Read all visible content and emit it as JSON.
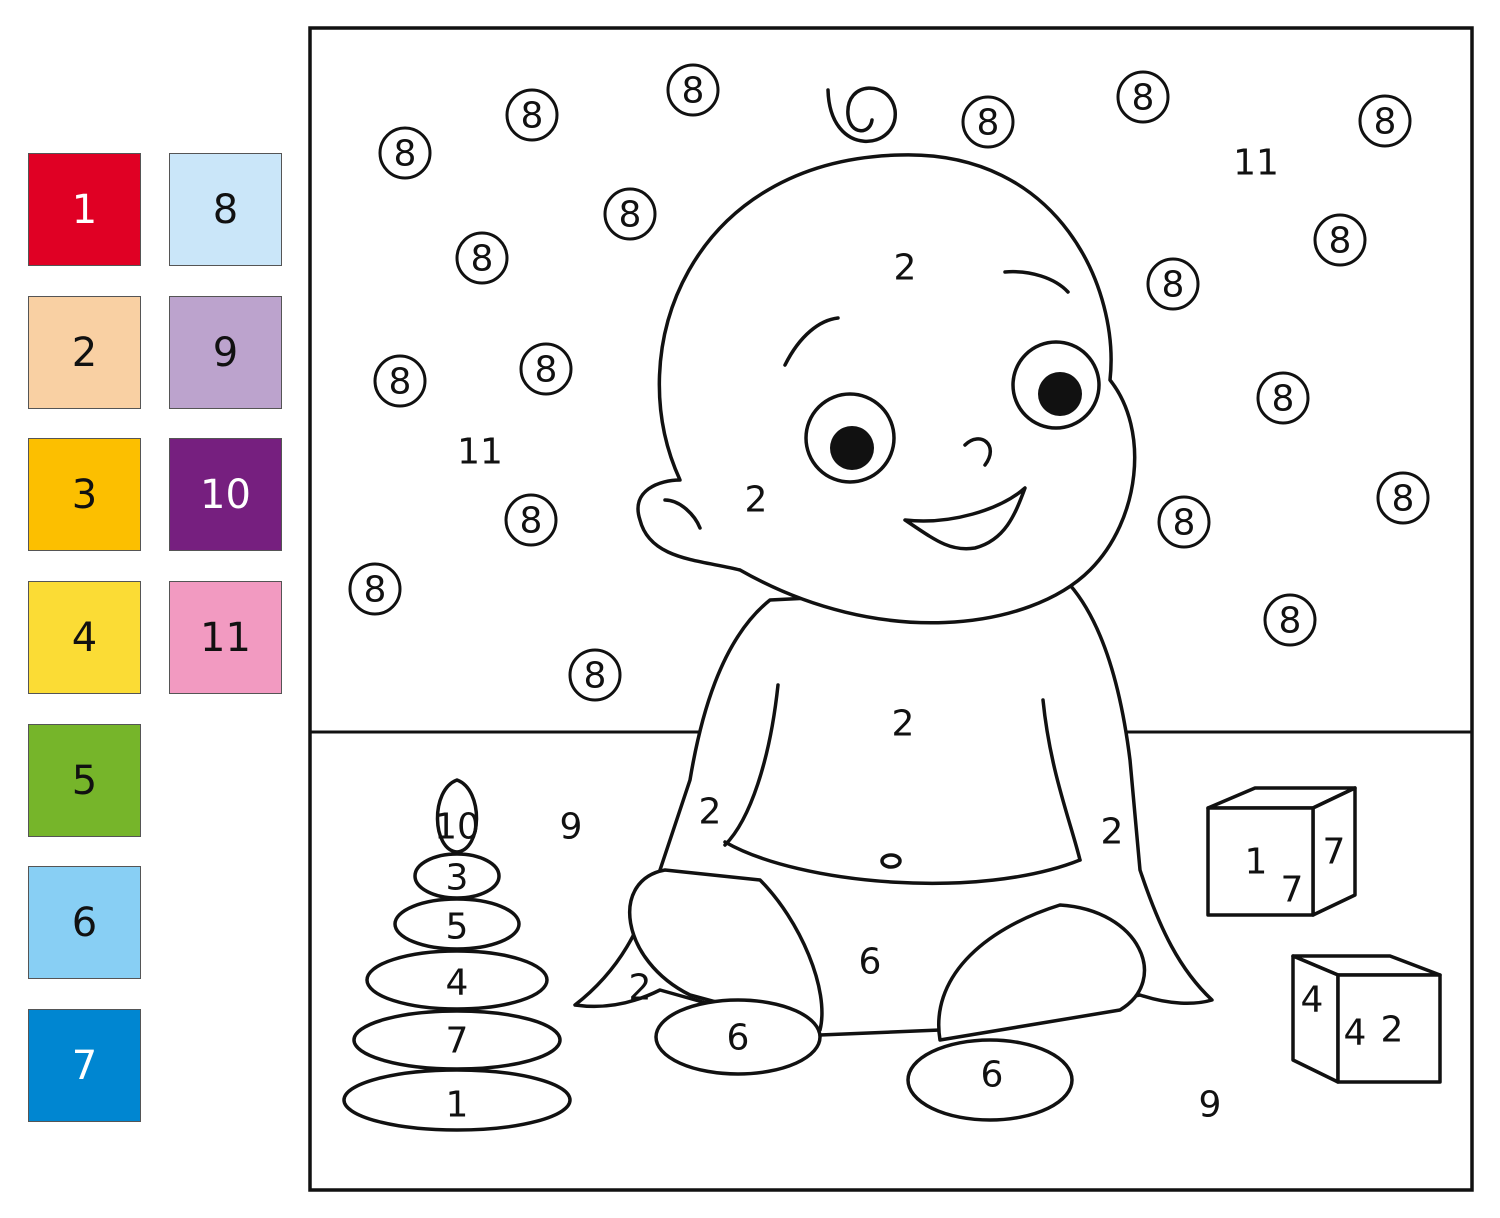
{
  "palette": [
    {
      "number": "1",
      "color": "#e00024",
      "text_color": "#ffffff"
    },
    {
      "number": "2",
      "color": "#f9d0a3",
      "text_color": "#111111"
    },
    {
      "number": "3",
      "color": "#fcbf00",
      "text_color": "#111111"
    },
    {
      "number": "4",
      "color": "#fbdc35",
      "text_color": "#111111"
    },
    {
      "number": "5",
      "color": "#76b52a",
      "text_color": "#111111"
    },
    {
      "number": "6",
      "color": "#88cff4",
      "text_color": "#111111"
    },
    {
      "number": "7",
      "color": "#0086d1",
      "text_color": "#ffffff"
    },
    {
      "number": "8",
      "color": "#cae6f9",
      "text_color": "#111111"
    },
    {
      "number": "9",
      "color": "#bca3cd",
      "text_color": "#111111"
    },
    {
      "number": "10",
      "color": "#761f7f",
      "text_color": "#ffffff"
    },
    {
      "number": "11",
      "color": "#f29ac1",
      "text_color": "#111111"
    }
  ],
  "circled_labels": [
    "8",
    "8",
    "8",
    "8",
    "8",
    "8",
    "8",
    "8",
    "8",
    "8",
    "8",
    "8",
    "8",
    "8",
    "8",
    "8",
    "8",
    "8",
    "8"
  ],
  "region_labels": [
    "11",
    "11",
    "2",
    "2",
    "2",
    "2",
    "2",
    "2",
    "6",
    "6",
    "6",
    "9",
    "9",
    "10",
    "3",
    "5",
    "4",
    "7",
    "1",
    "7",
    "7",
    "4",
    "4"
  ],
  "block_letters": [
    "1",
    "2"
  ]
}
